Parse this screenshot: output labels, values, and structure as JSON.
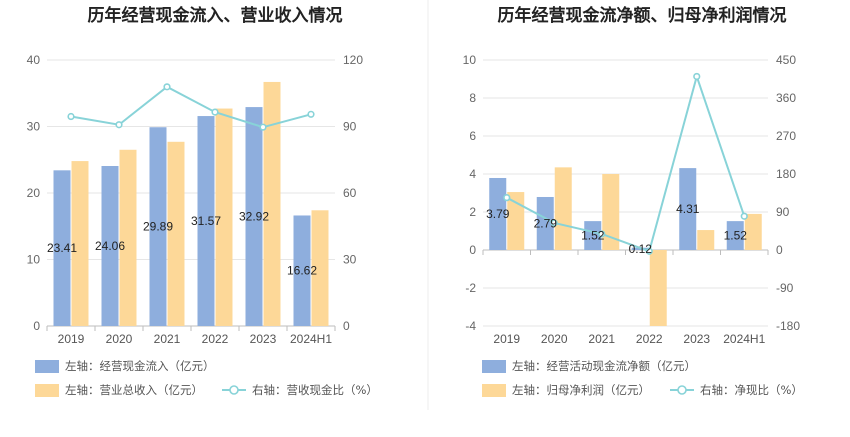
{
  "colors": {
    "left_bar": "#8eaedd",
    "right_bar": "#fdd898",
    "line": "#88d3d8",
    "divider": "#eeeeee"
  },
  "chart_data": [
    {
      "type": "bar",
      "title": "历年经营现金流入、营业收入情况",
      "categories": [
        "2019",
        "2020",
        "2021",
        "2022",
        "2023",
        "2024H1"
      ],
      "left_axis": {
        "min": 0,
        "max": 40,
        "ticks": [
          "0",
          "10",
          "20",
          "30",
          "40"
        ]
      },
      "right_axis": {
        "min": 0,
        "max": 120,
        "ticks": [
          "0",
          "30",
          "60",
          "90",
          "120"
        ]
      },
      "series": [
        {
          "name": "左轴：经营现金流入（亿元）",
          "kind": "bar",
          "axis": "left",
          "color_key": "left_bar",
          "values": [
            23.41,
            24.06,
            29.89,
            31.57,
            32.92,
            16.62
          ],
          "labels": [
            "23.41",
            "24.06",
            "29.89",
            "31.57",
            "32.92",
            "16.62"
          ]
        },
        {
          "name": "左轴：营业总收入（亿元）",
          "kind": "bar",
          "axis": "left",
          "color_key": "right_bar",
          "values": [
            24.8,
            26.5,
            27.7,
            32.7,
            36.7,
            17.4
          ]
        },
        {
          "name": "右轴：营收现金比（%）",
          "kind": "line",
          "axis": "right",
          "color_key": "line",
          "values": [
            94.5,
            90.8,
            107.9,
            96.5,
            89.7,
            95.5
          ]
        }
      ]
    },
    {
      "type": "bar",
      "title": "历年经营现金流净额、归母净利润情况",
      "categories": [
        "2019",
        "2020",
        "2021",
        "2022",
        "2023",
        "2024H1"
      ],
      "left_axis": {
        "min": -4,
        "max": 10,
        "ticks": [
          "-4",
          "-2",
          "0",
          "2",
          "4",
          "6",
          "8",
          "10"
        ]
      },
      "right_axis": {
        "min": -180,
        "max": 450,
        "ticks": [
          "-180",
          "-90",
          "0",
          "90",
          "180",
          "270",
          "360",
          "450"
        ]
      },
      "series": [
        {
          "name": "左轴：经营活动现金流净额（亿元）",
          "kind": "bar",
          "axis": "left",
          "color_key": "left_bar",
          "values": [
            3.79,
            2.79,
            1.52,
            0.12,
            4.31,
            1.52
          ],
          "labels": [
            "3.79",
            "2.79",
            "1.52",
            "0.12",
            "4.31",
            "1.52"
          ]
        },
        {
          "name": "左轴：归母净利润（亿元）",
          "kind": "bar",
          "axis": "left",
          "color_key": "right_bar",
          "values": [
            3.05,
            4.35,
            4.0,
            -4.0,
            1.05,
            1.9
          ]
        },
        {
          "name": "右轴：净现比（%）",
          "kind": "line",
          "axis": "right",
          "color_key": "line",
          "values": [
            124,
            64,
            38,
            -3,
            411,
            80
          ]
        }
      ]
    }
  ]
}
